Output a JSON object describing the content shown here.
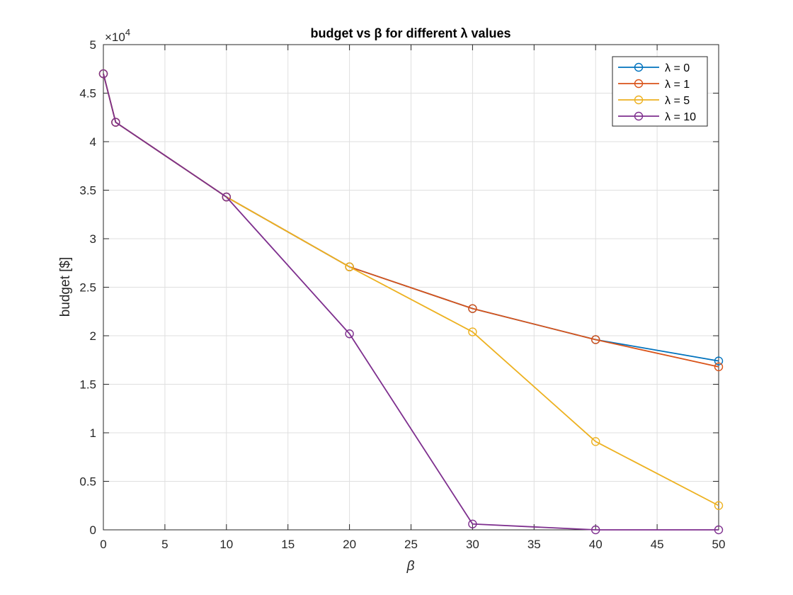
{
  "chart_data": {
    "type": "line",
    "title": "budget vs β for different λ values",
    "xlabel": "β",
    "ylabel": "budget [$]",
    "xlim": [
      0,
      50
    ],
    "ylim": [
      0,
      50000
    ],
    "xticks": [
      0,
      5,
      10,
      15,
      20,
      25,
      30,
      35,
      40,
      45,
      50
    ],
    "yticks": [
      0,
      5000,
      10000,
      15000,
      20000,
      25000,
      30000,
      35000,
      40000,
      45000,
      50000
    ],
    "ytick_labels": [
      "0",
      "0.5",
      "1",
      "1.5",
      "2",
      "2.5",
      "3",
      "3.5",
      "4",
      "4.5",
      "5"
    ],
    "y_exponent_label": "×10",
    "y_exponent_power": "4",
    "grid": true,
    "legend_position": "top-right",
    "x": [
      0,
      1,
      10,
      20,
      30,
      40,
      50
    ],
    "series": [
      {
        "name": "λ = 0",
        "color": "#0072BD",
        "marker": "circle",
        "values": [
          47000,
          42000,
          34300,
          27100,
          22800,
          19600,
          17400
        ]
      },
      {
        "name": "λ = 1",
        "color": "#D95319",
        "marker": "circle",
        "values": [
          47000,
          42000,
          34300,
          27100,
          22800,
          19600,
          16800
        ]
      },
      {
        "name": "λ = 5",
        "color": "#EDB120",
        "marker": "circle",
        "values": [
          47000,
          42000,
          34300,
          27100,
          20400,
          9100,
          2500
        ]
      },
      {
        "name": "λ = 10",
        "color": "#7E2F8E",
        "marker": "circle",
        "values": [
          47000,
          42000,
          34300,
          20200,
          600,
          0,
          0
        ]
      }
    ]
  }
}
